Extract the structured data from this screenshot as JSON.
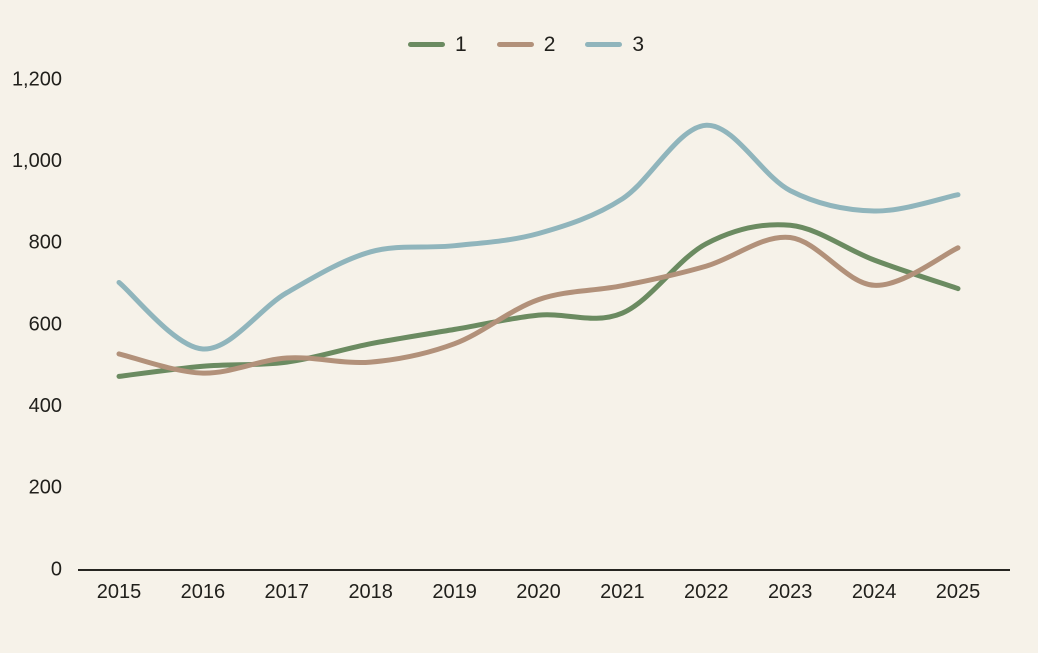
{
  "chart": {
    "background_color": "#f6f2e9",
    "text_color": "#21201c",
    "axis_color": "#262520",
    "legend": [
      {
        "label": "1",
        "color": "#6b8b61"
      },
      {
        "label": "2",
        "color": "#b2917a"
      },
      {
        "label": "3",
        "color": "#90b5bc"
      }
    ]
  },
  "chart_data": {
    "type": "line",
    "title": "",
    "xlabel": "",
    "ylabel": "",
    "x": [
      2015,
      2016,
      2017,
      2018,
      2019,
      2020,
      2021,
      2022,
      2023,
      2024,
      2025
    ],
    "series": [
      {
        "name": "1",
        "color": "#6b8b61",
        "values": [
          470,
          495,
          505,
          550,
          585,
          620,
          625,
          795,
          840,
          755,
          685
        ]
      },
      {
        "name": "2",
        "color": "#b2917a",
        "values": [
          525,
          478,
          515,
          505,
          550,
          658,
          692,
          740,
          810,
          693,
          785
        ]
      },
      {
        "name": "3",
        "color": "#90b5bc",
        "values": [
          700,
          537,
          675,
          775,
          790,
          820,
          905,
          1085,
          925,
          875,
          915
        ]
      }
    ],
    "ylim": [
      0,
      1200
    ],
    "yticks": [
      0,
      200,
      400,
      600,
      800,
      1000,
      1200
    ],
    "ytick_labels": [
      "0",
      "200",
      "400",
      "600",
      "800",
      "1,000",
      "1,200"
    ],
    "grid": false,
    "legend_position": "top-center",
    "line_style": "smooth"
  }
}
